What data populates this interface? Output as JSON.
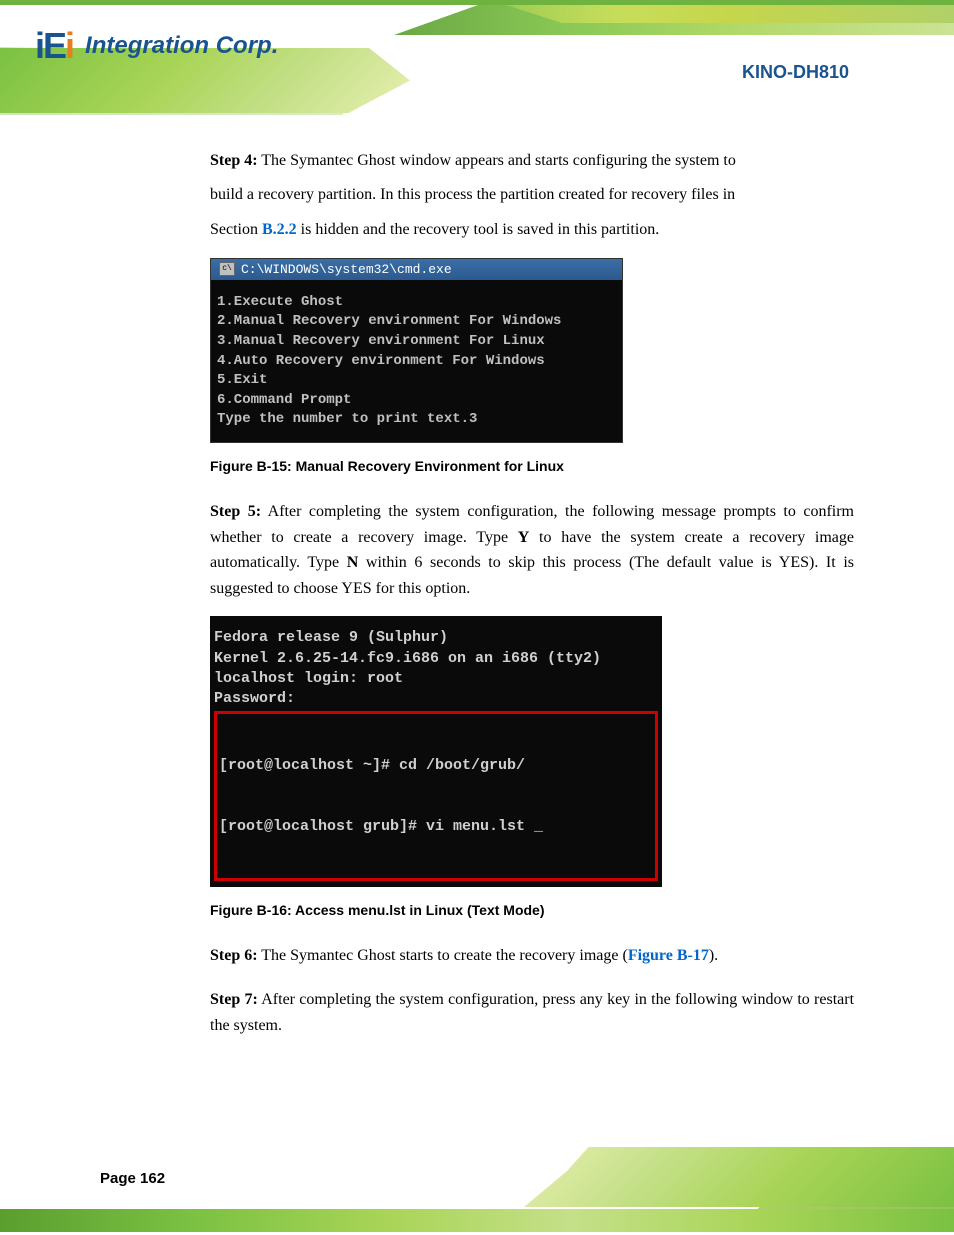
{
  "logo": {
    "brand": "iEi",
    "tagline": "Integration Corp."
  },
  "page_title": "KINO-DH810",
  "page_number": "Page 162",
  "body": {
    "step4": {
      "label": "Step 4:",
      "text_a": "The Symantec Ghost window appears and starts configuring the system to",
      "text_b": "build a recovery partition. In this process the partition created for recovery files in",
      "text_c_before": "Section ",
      "text_c_ref": "B.2.2",
      "text_c_after": " is hidden and the recovery tool is saved in this partition."
    },
    "figure15": {
      "caption": "Figure B-15: Manual Recovery Environment for Linux",
      "terminal": {
        "title": "C:\\WINDOWS\\system32\\cmd.exe",
        "lines": [
          "1.Execute Ghost",
          "2.Manual Recovery environment For Windows",
          "3.Manual Recovery environment For Linux",
          "4.Auto Recovery environment For Windows",
          "5.Exit",
          "6.Command Prompt",
          "Type the number to print text.3"
        ]
      }
    },
    "step5": {
      "label": "Step 5:",
      "text": "After completing the system configuration, the following message prompts to confirm whether to create a recovery image. Type ",
      "bold": "Y",
      "text_after": " to have the system create a recovery image automatically. Type ",
      "bold2": "N",
      "text_after2": " within 6 seconds to skip this process (The default value is YES). It is suggested to choose YES for this option."
    },
    "figure16": {
      "caption": "Figure B-16: Access menu.lst in Linux (Text Mode)",
      "terminal": {
        "lines": [
          "Fedora release 9 (Sulphur)",
          "Kernel 2.6.25-14.fc9.i686 on an i686 (tty2)",
          "",
          "localhost login: root",
          "Password:"
        ],
        "boxed_lines": [
          "[root@localhost ~]# cd /boot/grub/",
          "[root@localhost grub]# vi menu.lst _"
        ]
      }
    },
    "step6": {
      "label": "Step 6:",
      "text": "The Symantec Ghost starts to create the recovery image ("
    },
    "step7": {
      "label": "Step 7:",
      "text": "After completing the system configuration, press any key in the following window to restart the system."
    }
  },
  "colors": {
    "link_blue": "#0066cc",
    "terminal_bg": "#0a0a0a",
    "terminal_fg": "#c0c0c0",
    "titlebar_blue": "#2b5a8f",
    "redbox": "#cc0000",
    "brand_blue": "#1a5490",
    "green1": "#7bc142",
    "green2": "#a8d456"
  }
}
